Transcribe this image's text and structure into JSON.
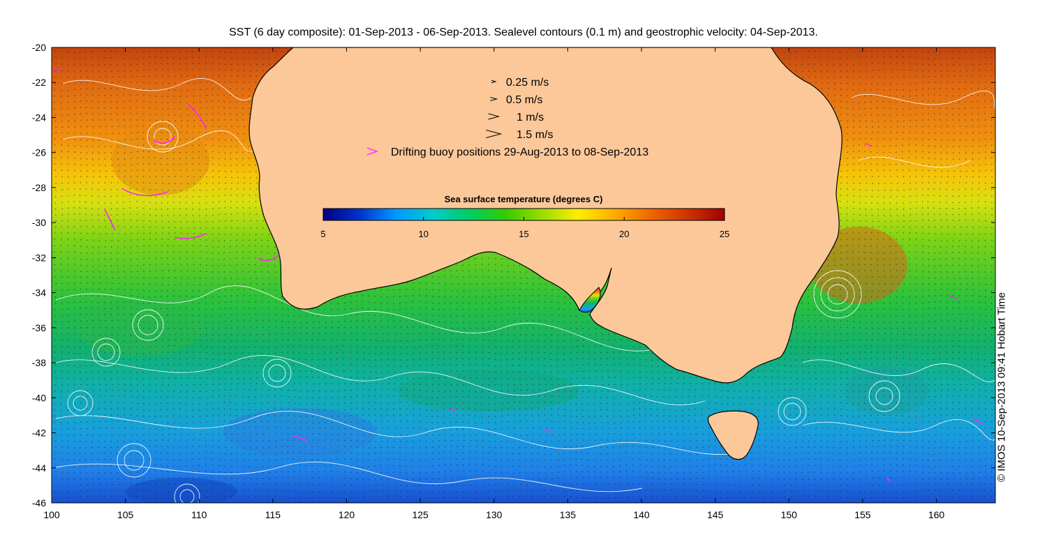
{
  "title": "SST (6 day composite): 01-Sep-2013 - 06-Sep-2013. Sealevel contours (0.1 m) and geostrophic velocity: 04-Sep-2013.",
  "copyright": "© IMOS 10-Sep-2013 09:41 Hobart Time",
  "map": {
    "lon_range": [
      100,
      164
    ],
    "lat_range": [
      -46,
      -20
    ],
    "x_ticks": [
      "100",
      "105",
      "110",
      "115",
      "120",
      "125",
      "130",
      "135",
      "140",
      "145",
      "150",
      "155",
      "160"
    ],
    "y_ticks": [
      "-20",
      "-22",
      "-24",
      "-26",
      "-28",
      "-30",
      "-32",
      "-34",
      "-36",
      "-38",
      "-40",
      "-42",
      "-44",
      "-46"
    ],
    "colors": {
      "land": "#fcc899",
      "buoy": "#ff22ff",
      "contour": "#ffffff",
      "vector": "#000000"
    }
  },
  "legend": {
    "velocity_items": [
      {
        "label": "0.25 m/s",
        "speed": 0.25
      },
      {
        "label": "0.5 m/s",
        "speed": 0.5
      },
      {
        "label": "1 m/s",
        "speed": 1
      },
      {
        "label": "1.5 m/s",
        "speed": 1.5
      }
    ],
    "buoy_label": "Drifting buoy positions 29-Aug-2013 to 08-Sep-2013"
  },
  "colorbar": {
    "title": "Sea surface temperature (degrees C)",
    "range": [
      5,
      25
    ],
    "ticks": [
      "5",
      "10",
      "15",
      "20",
      "25"
    ],
    "colormap": [
      "#000080",
      "#0033cc",
      "#0099ff",
      "#00cccc",
      "#00cc66",
      "#33cc00",
      "#99dd00",
      "#ffee00",
      "#ffaa00",
      "#ee6600",
      "#cc3300",
      "#a00000"
    ]
  }
}
